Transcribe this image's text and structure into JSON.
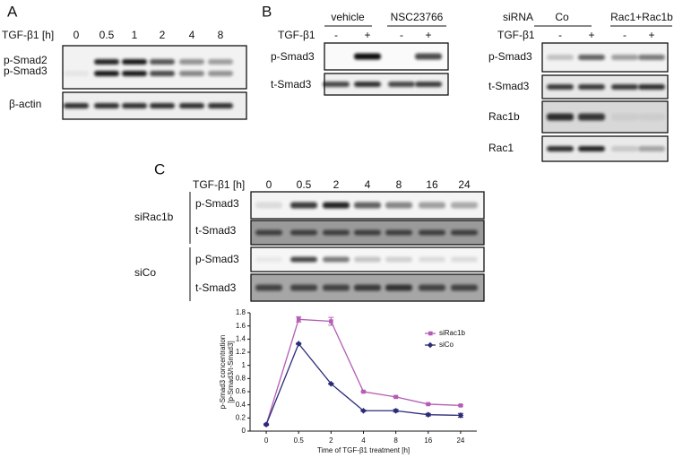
{
  "panel_a": {
    "label": "A",
    "treatment": "TGF-β1 [h]",
    "lanes": [
      "0",
      "0.5",
      "1",
      "2",
      "4",
      "8"
    ],
    "rows": [
      "p-Smad2",
      "p-Smad3",
      "β-actin"
    ]
  },
  "panel_b": {
    "label": "B",
    "groups": [
      "vehicle",
      "NSC23766"
    ],
    "treatment": "TGF-β1",
    "lanes": [
      "-",
      "+",
      "-",
      "+"
    ],
    "rows": [
      "p-Smad3",
      "t-Smad3"
    ],
    "right": {
      "title": "siRNA",
      "groups": [
        "Co",
        "Rac1+Rac1b"
      ],
      "treatment": "TGF-β1",
      "lanes": [
        "-",
        "+",
        "-",
        "+"
      ],
      "rows": [
        "p-Smad3",
        "t-Smad3",
        "Rac1b",
        "Rac1"
      ]
    }
  },
  "panel_c": {
    "label": "C",
    "treatment": "TGF-β1 [h]",
    "lanes": [
      "0",
      "0.5",
      "2",
      "4",
      "8",
      "16",
      "24"
    ],
    "groups": [
      {
        "name": "siRac1b",
        "rows": [
          "p-Smad3",
          "t-Smad3"
        ]
      },
      {
        "name": "siCo",
        "rows": [
          "p-Smad3",
          "t-Smad3"
        ]
      }
    ]
  },
  "chart_data": {
    "type": "line",
    "xlabel": "Time of TGF-β1 treatment [h]",
    "ylabel": [
      "p-Smad3 concentration",
      "[p-Smad3/t-Smad3]"
    ],
    "categories": [
      "0",
      "0.5",
      "2",
      "4",
      "8",
      "16",
      "24"
    ],
    "series": [
      {
        "name": "siRac1b",
        "color": "#b35db3",
        "marker": "square",
        "values": [
          0.1,
          1.7,
          1.67,
          0.6,
          0.52,
          0.41,
          0.39
        ],
        "errors": [
          0.01,
          0.04,
          0.06,
          0.01,
          0.01,
          0.01,
          0.01
        ]
      },
      {
        "name": "siCo",
        "color": "#2b2b78",
        "marker": "diamond",
        "values": [
          0.1,
          1.33,
          0.72,
          0.31,
          0.31,
          0.25,
          0.24
        ],
        "errors": [
          0.01,
          0.01,
          0.01,
          0.01,
          0.02,
          0.02,
          0.03
        ]
      }
    ],
    "ylim": [
      0,
      1.8
    ],
    "yticks": [
      0,
      0.2,
      0.4,
      0.6,
      0.8,
      1,
      1.2,
      1.4,
      1.6,
      1.8
    ],
    "legend": "upper right"
  }
}
